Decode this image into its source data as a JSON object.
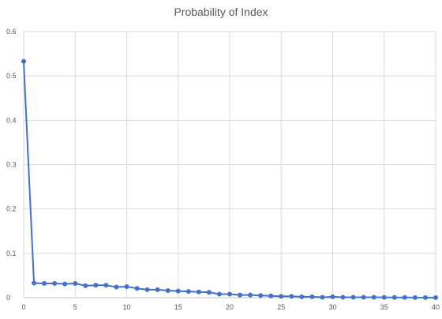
{
  "chart_data": {
    "type": "line",
    "title": "Probability of Index",
    "xlabel": "",
    "ylabel": "",
    "xlim": [
      0,
      40
    ],
    "ylim": [
      0,
      0.6
    ],
    "xticks": [
      0,
      5,
      10,
      15,
      20,
      25,
      30,
      35,
      40
    ],
    "yticks": [
      0,
      0.1,
      0.2,
      0.3,
      0.4,
      0.5,
      0.6
    ],
    "ytick_labels": [
      "0",
      "0.1",
      "0.2",
      "0.3",
      "0.4",
      "0.5",
      "0.6"
    ],
    "xtick_labels": [
      "0",
      "5",
      "10",
      "15",
      "20",
      "25",
      "30",
      "35",
      "40"
    ],
    "grid": true,
    "legend": "none",
    "line_color": "#4472C4",
    "grid_color": "#D9D9D9",
    "series": [
      {
        "x": [
          0,
          1,
          2,
          3,
          4,
          5,
          6,
          7,
          8,
          9,
          10,
          11,
          12,
          13,
          14,
          15,
          16,
          17,
          18,
          19,
          20,
          21,
          22,
          23,
          24,
          25,
          26,
          27,
          28,
          29,
          30,
          31,
          32,
          33,
          34,
          35,
          36,
          37,
          38,
          39,
          40
        ],
        "values": [
          0.533,
          0.033,
          0.032,
          0.032,
          0.031,
          0.032,
          0.027,
          0.028,
          0.028,
          0.024,
          0.025,
          0.021,
          0.018,
          0.018,
          0.016,
          0.015,
          0.014,
          0.013,
          0.012,
          0.008,
          0.008,
          0.006,
          0.006,
          0.005,
          0.004,
          0.003,
          0.003,
          0.002,
          0.002,
          0.001,
          0.002,
          0.001,
          0.001,
          0.001,
          0.0008,
          0.0006,
          0.0005,
          0.0004,
          0.0003,
          0.0003,
          0.0002
        ]
      }
    ]
  }
}
